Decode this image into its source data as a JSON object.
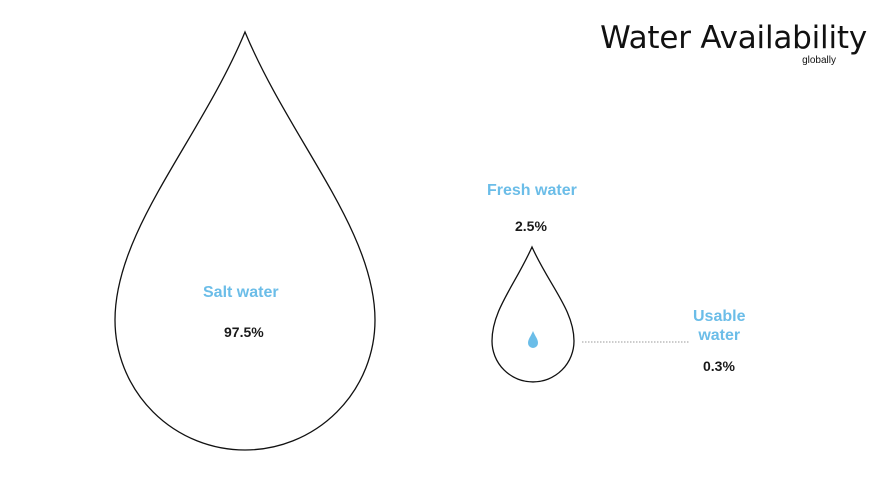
{
  "header": {
    "title": "Water Availability",
    "subtitle": "globally"
  },
  "salt_water": {
    "label": "Salt  water",
    "value": "97.5%"
  },
  "fresh_water": {
    "label": "Fresh water",
    "value": "2.5%"
  },
  "usable_water": {
    "label_line1": "Usable",
    "label_line2": "water",
    "value": "0.3%"
  },
  "colors": {
    "accent_blue": "#6bbde8",
    "outline": "#111111",
    "connector": "#9a9a9a"
  }
}
